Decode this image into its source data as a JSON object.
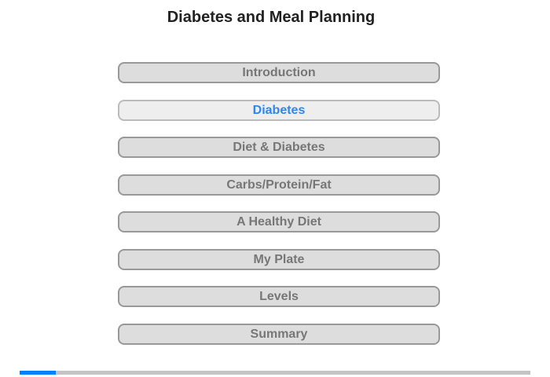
{
  "title": "Diabetes and Meal Planning",
  "menu": [
    {
      "label": "Introduction",
      "active": false
    },
    {
      "label": "Diabetes",
      "active": true
    },
    {
      "label": "Diet & Diabetes",
      "active": false
    },
    {
      "label": "Carbs/Protein/Fat",
      "active": false
    },
    {
      "label": "A Healthy Diet",
      "active": false
    },
    {
      "label": "My Plate",
      "active": false
    },
    {
      "label": "Levels",
      "active": false
    },
    {
      "label": "Summary",
      "active": false
    }
  ],
  "progress": 0.07,
  "colors": {
    "accent": "#0080ff",
    "active_text": "#2e86f0",
    "track": "#c4c4c4"
  }
}
